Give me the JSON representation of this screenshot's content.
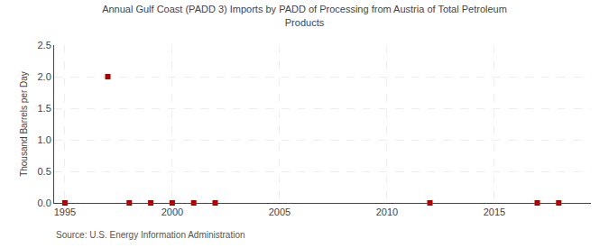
{
  "chart_data": {
    "type": "scatter",
    "title": "Annual Gulf Coast (PADD 3) Imports by PADD of Processing from Austria of Total Petroleum\nProducts",
    "ylabel": "Thousand Barrels per Day",
    "annotations": [
      "Source: U.S. Energy Information Administration"
    ],
    "x": [
      1995,
      1997,
      1998,
      1999,
      2000,
      2001,
      2002,
      2012,
      2017,
      2018
    ],
    "values": [
      0.0,
      2.0,
      0.0,
      0.0,
      0.0,
      0.0,
      0.0,
      0.0,
      0.0,
      0.0
    ],
    "color": "#aa0000",
    "marker": "square",
    "xlim": [
      1994.5,
      2019.5
    ],
    "xticks": [
      1995,
      2000,
      2005,
      2010,
      2015
    ],
    "ylim": [
      0,
      2.5
    ],
    "yticks": [
      {
        "value": 0,
        "label": "0.0"
      },
      0.5,
      {
        "value": 1,
        "label": "1.0"
      },
      1.5,
      {
        "value": 2,
        "label": "2.0"
      },
      2.5
    ],
    "grid": true
  }
}
